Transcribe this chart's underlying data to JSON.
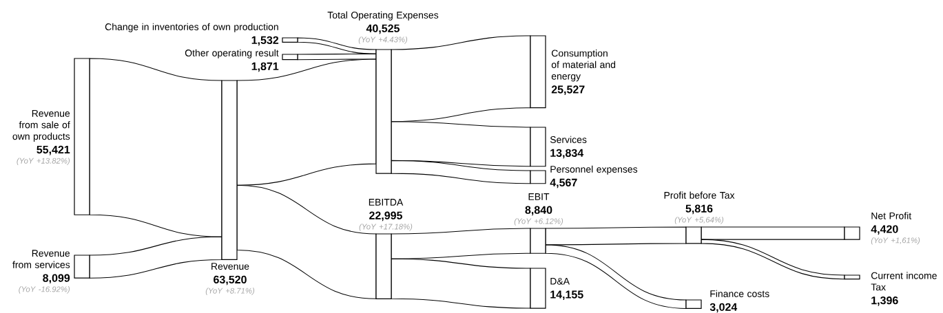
{
  "chart_data": {
    "type": "other",
    "categories": [
      "Revenue from sale of own products",
      "Revenue from services",
      "Change in inventories of own production",
      "Other operating result",
      "Revenue",
      "Total Operating Expenses",
      "Consumption of material and energy",
      "Services",
      "Personnel expenses",
      "EBITDA",
      "EBIT",
      "D&A",
      "Profit before Tax",
      "Finance costs",
      "Net Profit",
      "Current income Tax"
    ],
    "values": [
      55421,
      8099,
      1532,
      1871,
      63520,
      40525,
      25527,
      13834,
      4567,
      22995,
      8840,
      14155,
      5816,
      3024,
      4420,
      1396
    ],
    "value_labels": [
      "55,421",
      "8,099",
      "1,532",
      "1,871",
      "63,520",
      "40,525",
      "25,527",
      "13,834",
      "4,567",
      "22,995",
      "8,840",
      "14,155",
      "5,816",
      "3,024",
      "4,420",
      "1,396"
    ],
    "annotations": [
      "(YoY +13.82%)",
      "(YoY -16.92%)",
      "(YoY +8.71%)",
      "(YoY +4.43%)",
      "(YoY +17.18%)",
      "(YoY +6.12%)",
      "(YoY +5,64%)",
      "(YoY +1,61%)"
    ]
  }
}
